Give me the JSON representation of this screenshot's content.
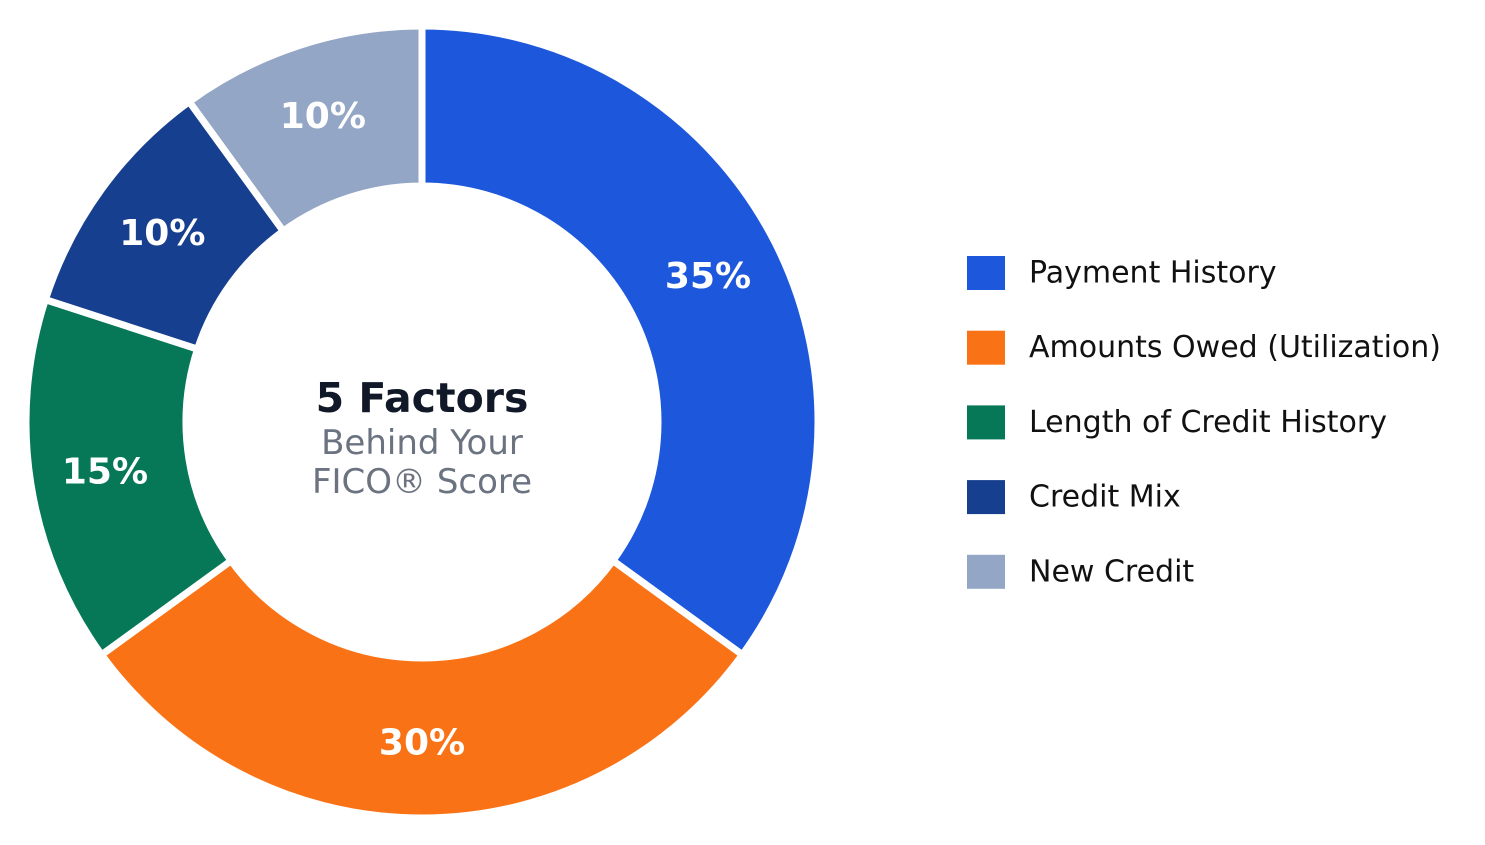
{
  "chart_data": {
    "type": "pie",
    "variant": "donut",
    "center_title": "5 Factors",
    "center_subtitle_line1": "Behind Your",
    "center_subtitle_line2": "FICO® Score",
    "slices": [
      {
        "label": "Payment History",
        "value": 35,
        "display": "35%",
        "color": "#1d57dc"
      },
      {
        "label": "Amounts Owed (Utilization)",
        "value": 30,
        "display": "30%",
        "color": "#f97316"
      },
      {
        "label": "Length of Credit History",
        "value": 15,
        "display": "15%",
        "color": "#067857"
      },
      {
        "label": "Credit Mix",
        "value": 10,
        "display": "10%",
        "color": "#173f8f"
      },
      {
        "label": "New Credit",
        "value": 10,
        "display": "10%",
        "color": "#94a6c6"
      }
    ],
    "legend_position": "right",
    "start_angle": "12 o'clock, clockwise"
  }
}
